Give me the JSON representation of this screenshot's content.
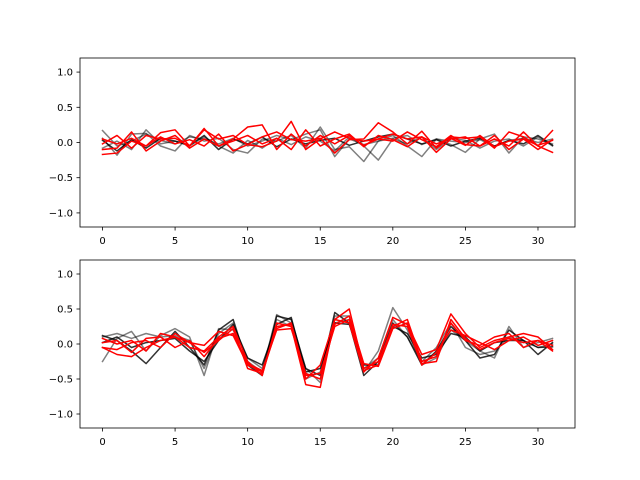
{
  "chart_data": [
    {
      "type": "line",
      "x": [
        0,
        1,
        2,
        3,
        4,
        5,
        6,
        7,
        8,
        9,
        10,
        11,
        12,
        13,
        14,
        15,
        16,
        17,
        18,
        19,
        20,
        21,
        22,
        23,
        24,
        25,
        26,
        27,
        28,
        29,
        30,
        31
      ],
      "xlim": [
        -1.55,
        32.55
      ],
      "ylim": [
        -1.2,
        1.2
      ],
      "xticks": [
        0,
        5,
        10,
        15,
        20,
        25,
        30
      ],
      "yticks": [
        -1.0,
        -0.5,
        0.0,
        0.5,
        1.0
      ],
      "xtick_labels": [
        "0",
        "5",
        "10",
        "15",
        "20",
        "25",
        "30"
      ],
      "ytick_labels": [
        "−1.0",
        "−0.5",
        "0.0",
        "0.5",
        "1.0"
      ],
      "grid": false,
      "series": [
        {
          "color": "#000000",
          "opacity": 0.5,
          "values": [
            0.17,
            -0.05,
            0.02,
            0.12,
            0.03,
            -0.02,
            0.08,
            0.05,
            -0.02,
            0.06,
            -0.05,
            0.02,
            0.1,
            0.04,
            0.12,
            0.18,
            -0.2,
            0.05,
            -0.03,
            0.02,
            0.06,
            0.1,
            -0.03,
            0.05,
            0.02,
            0.0,
            0.04,
            -0.05,
            0.03,
            0.06,
            0.0,
            0.05
          ]
        },
        {
          "color": "#000000",
          "opacity": 0.5,
          "values": [
            0.06,
            -0.18,
            0.12,
            0.13,
            -0.05,
            -0.12,
            0.1,
            0.02,
            0.06,
            -0.1,
            -0.15,
            0.05,
            0.02,
            0.1,
            -0.08,
            0.22,
            -0.1,
            -0.06,
            -0.27,
            0.02,
            0.1,
            -0.05,
            -0.2,
            0.05,
            -0.03,
            -0.14,
            0.05,
            0.12,
            -0.15,
            0.08,
            0.05,
            -0.02
          ]
        },
        {
          "color": "#000000",
          "opacity": 0.5,
          "values": [
            -0.08,
            0.02,
            -0.1,
            0.18,
            -0.02,
            0.02,
            -0.05,
            0.08,
            -0.05,
            -0.15,
            0.03,
            -0.08,
            0.06,
            -0.03,
            0.08,
            0.02,
            -0.12,
            0.08,
            -0.05,
            -0.25,
            0.05,
            -0.02,
            0.08,
            -0.1,
            0.06,
            0.03,
            -0.08,
            0.02,
            0.05,
            -0.05,
            0.08,
            -0.05
          ]
        },
        {
          "color": "#000000",
          "opacity": 0.8,
          "values": [
            0.03,
            -0.12,
            0.04,
            -0.08,
            0.06,
            0.02,
            -0.04,
            0.1,
            -0.1,
            0.05,
            -0.02,
            0.08,
            -0.06,
            0.05,
            -0.02,
            0.03,
            0.06,
            -0.04,
            0.02,
            0.08,
            0.12,
            0.05,
            -0.02,
            0.04,
            -0.05,
            0.02,
            0.06,
            -0.05,
            0.03,
            -0.02,
            0.1,
            -0.04
          ]
        },
        {
          "color": "#ff0000",
          "opacity": 1.0,
          "values": [
            -0.17,
            -0.15,
            0.02,
            -0.05,
            0.14,
            0.18,
            -0.05,
            0.2,
            -0.05,
            0.05,
            0.22,
            0.25,
            -0.1,
            0.12,
            -0.05,
            0.1,
            -0.02,
            0.1,
            -0.04,
            0.05,
            0.12,
            0.05,
            0.08,
            -0.14,
            0.05,
            0.08,
            -0.05,
            0.05,
            -0.05,
            0.15,
            -0.05,
            -0.14
          ]
        },
        {
          "color": "#ff0000",
          "opacity": 1.0,
          "values": [
            -0.02,
            0.1,
            -0.08,
            0.1,
            0.05,
            0.06,
            -0.05,
            0.18,
            0.05,
            0.1,
            -0.03,
            0.08,
            0.15,
            0.04,
            0.02,
            0.06,
            -0.15,
            0.04,
            0.05,
            0.28,
            0.15,
            -0.02,
            0.16,
            -0.08,
            0.08,
            0.06,
            0.08,
            -0.08,
            0.15,
            0.08,
            -0.05,
            0.17
          ]
        },
        {
          "color": "#ff0000",
          "opacity": 1.0,
          "values": [
            0.05,
            -0.02,
            0.06,
            -0.05,
            0.08,
            -0.02,
            0.04,
            -0.05,
            0.12,
            -0.12,
            -0.03,
            -0.06,
            0.02,
            0.3,
            -0.1,
            0.05,
            0.15,
            0.06,
            0.02,
            0.05,
            0.02,
            0.15,
            0.04,
            -0.06,
            0.1,
            -0.03,
            -0.05,
            0.1,
            -0.1,
            0.05,
            -0.04,
            0.03
          ]
        },
        {
          "color": "#ff0000",
          "opacity": 1.0,
          "values": [
            -0.1,
            -0.08,
            0.15,
            -0.12,
            0.02,
            0.1,
            -0.08,
            0.05,
            -0.05,
            0.02,
            0.1,
            -0.02,
            0.06,
            -0.1,
            0.18,
            -0.05,
            0.05,
            0.12,
            -0.06,
            0.1,
            0.04,
            -0.06,
            0.08,
            -0.02,
            0.06,
            -0.04,
            0.1,
            -0.06,
            0.02,
            0.05,
            -0.1,
            0.04
          ]
        }
      ]
    },
    {
      "type": "line",
      "x": [
        0,
        1,
        2,
        3,
        4,
        5,
        6,
        7,
        8,
        9,
        10,
        11,
        12,
        13,
        14,
        15,
        16,
        17,
        18,
        19,
        20,
        21,
        22,
        23,
        24,
        25,
        26,
        27,
        28,
        29,
        30,
        31
      ],
      "xlim": [
        -1.55,
        32.55
      ],
      "ylim": [
        -1.2,
        1.2
      ],
      "xticks": [
        0,
        5,
        10,
        15,
        20,
        25,
        30
      ],
      "yticks": [
        -1.0,
        -0.5,
        0.0,
        0.5,
        1.0
      ],
      "xtick_labels": [
        "0",
        "5",
        "10",
        "15",
        "20",
        "25",
        "30"
      ],
      "ytick_labels": [
        "−1.0",
        "−0.5",
        "0.0",
        "0.5",
        "1.0"
      ],
      "grid": false,
      "series": [
        {
          "color": "#000000",
          "opacity": 0.5,
          "values": [
            -0.25,
            0.08,
            0.18,
            -0.1,
            0.12,
            0.22,
            0.1,
            -0.45,
            0.22,
            0.2,
            -0.2,
            -0.35,
            0.35,
            0.25,
            -0.35,
            -0.55,
            0.4,
            0.4,
            -0.4,
            -0.1,
            0.52,
            0.2,
            -0.3,
            -0.2,
            0.2,
            0.05,
            -0.1,
            -0.2,
            0.25,
            -0.05,
            0.02,
            0.08
          ]
        },
        {
          "color": "#000000",
          "opacity": 0.5,
          "values": [
            0.1,
            0.15,
            0.08,
            0.15,
            0.1,
            0.12,
            0.05,
            -0.35,
            0.15,
            0.3,
            -0.25,
            -0.4,
            0.42,
            0.3,
            -0.5,
            -0.4,
            0.3,
            0.35,
            -0.35,
            -0.2,
            0.35,
            0.1,
            -0.25,
            -0.05,
            0.3,
            -0.05,
            -0.15,
            -0.1,
            0.1,
            0.05,
            -0.05,
            0.0
          ]
        },
        {
          "color": "#000000",
          "opacity": 0.8,
          "values": [
            0.12,
            0.05,
            -0.1,
            -0.28,
            -0.05,
            0.18,
            -0.05,
            -0.3,
            0.2,
            0.35,
            -0.3,
            -0.45,
            0.4,
            0.35,
            -0.35,
            -0.45,
            0.45,
            0.3,
            -0.45,
            -0.25,
            0.3,
            0.1,
            -0.3,
            -0.1,
            0.25,
            0.05,
            -0.2,
            -0.15,
            0.2,
            0.05,
            -0.15,
            0.02
          ]
        },
        {
          "color": "#000000",
          "opacity": 0.8,
          "values": [
            0.02,
            0.1,
            -0.05,
            0.02,
            0.05,
            0.08,
            -0.1,
            -0.25,
            0.05,
            0.28,
            -0.2,
            -0.3,
            0.28,
            0.38,
            -0.4,
            -0.35,
            0.3,
            0.28,
            -0.3,
            -0.3,
            0.25,
            0.15,
            -0.2,
            -0.15,
            0.15,
            0.1,
            -0.1,
            0.02,
            0.05,
            0.05,
            -0.05,
            -0.04
          ]
        },
        {
          "color": "#ff0000",
          "opacity": 1.0,
          "values": [
            -0.05,
            -0.15,
            -0.18,
            -0.05,
            0.05,
            0.1,
            -0.05,
            -0.1,
            0.1,
            0.25,
            -0.25,
            -0.45,
            0.3,
            0.25,
            -0.58,
            -0.62,
            0.35,
            0.3,
            -0.4,
            -0.2,
            0.38,
            0.28,
            -0.15,
            -0.08,
            0.43,
            0.15,
            -0.05,
            0.05,
            0.1,
            0.15,
            0.1,
            -0.08
          ]
        },
        {
          "color": "#ff0000",
          "opacity": 1.0,
          "values": [
            0.08,
            0.0,
            0.05,
            -0.1,
            0.15,
            0.1,
            0.02,
            -0.02,
            0.18,
            0.12,
            -0.3,
            -0.4,
            0.25,
            0.28,
            -0.5,
            -0.3,
            0.35,
            0.5,
            -0.35,
            -0.25,
            0.25,
            0.35,
            -0.25,
            -0.18,
            0.3,
            0.05,
            -0.02,
            0.1,
            0.15,
            -0.05,
            0.05,
            -0.1
          ]
        },
        {
          "color": "#ff0000",
          "opacity": 1.0,
          "values": [
            -0.05,
            -0.08,
            0.02,
            0.05,
            -0.05,
            0.15,
            0.02,
            -0.12,
            0.05,
            0.22,
            -0.35,
            -0.42,
            0.22,
            0.3,
            -0.45,
            -0.42,
            0.25,
            0.35,
            -0.38,
            -0.3,
            0.28,
            0.25,
            -0.3,
            -0.12,
            0.2,
            0.12,
            0.02,
            -0.08,
            0.05,
            0.1,
            -0.02,
            0.05
          ]
        },
        {
          "color": "#ff0000",
          "opacity": 1.0,
          "values": [
            0.02,
            0.05,
            -0.12,
            0.08,
            0.1,
            -0.05,
            0.05,
            -0.18,
            0.08,
            0.15,
            -0.28,
            -0.38,
            0.2,
            0.22,
            -0.42,
            -0.5,
            0.28,
            0.4,
            -0.28,
            -0.32,
            0.22,
            0.3,
            -0.28,
            -0.25,
            0.35,
            0.08,
            -0.08,
            0.02,
            0.08,
            0.02,
            0.05,
            -0.02
          ]
        }
      ]
    }
  ]
}
